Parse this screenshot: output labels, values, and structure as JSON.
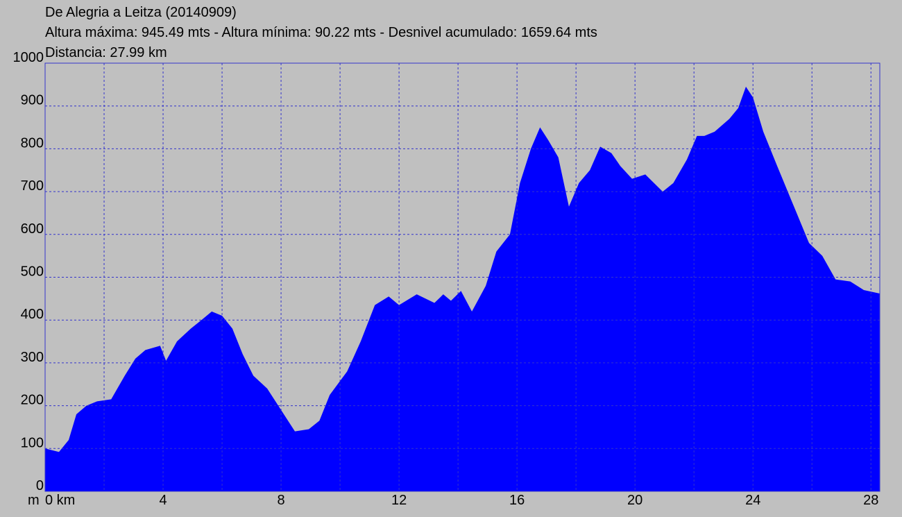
{
  "chart_data": {
    "type": "area",
    "title": "De Alegria a Leitza (20140909)",
    "subtitle": "Altura máxima: 945.49 mts - Altura mínima: 90.22 mts - Desnivel acumulado: 1659.64 mts",
    "annotation": "Distancia: 27.99 km",
    "y_unit": "m",
    "color": "#0000ff",
    "grid_color": "#3333cc",
    "x": [
      0,
      0.47,
      0.8,
      1.06,
      1.4,
      1.76,
      2.24,
      2.7,
      3.06,
      3.4,
      3.9,
      4.1,
      4.47,
      4.94,
      5.3,
      5.65,
      6.0,
      6.35,
      6.7,
      7.06,
      7.53,
      8.0,
      8.47,
      8.94,
      9.3,
      9.65,
      10.24,
      10.7,
      11.18,
      11.65,
      12.0,
      12.6,
      13.2,
      13.5,
      13.76,
      14.1,
      14.47,
      14.94,
      15.3,
      15.76,
      16.1,
      16.47,
      16.78,
      17.06,
      17.4,
      17.76,
      18.1,
      18.47,
      18.82,
      19.2,
      19.5,
      19.9,
      20.35,
      20.94,
      21.3,
      21.76,
      22.1,
      22.35,
      22.7,
      23.2,
      23.5,
      23.76,
      24.0,
      24.35,
      24.82,
      25.3,
      25.9,
      26.35,
      26.8,
      27.3,
      27.76,
      28.3
    ],
    "values": [
      100,
      92,
      120,
      180,
      200,
      210,
      215,
      270,
      310,
      330,
      340,
      305,
      350,
      380,
      400,
      420,
      410,
      380,
      320,
      270,
      240,
      190,
      140,
      145,
      165,
      225,
      280,
      350,
      435,
      455,
      435,
      460,
      440,
      460,
      445,
      468,
      420,
      480,
      560,
      600,
      720,
      800,
      850,
      820,
      780,
      665,
      720,
      750,
      805,
      790,
      760,
      730,
      740,
      700,
      720,
      775,
      830,
      830,
      840,
      870,
      895,
      945,
      920,
      840,
      760,
      680,
      580,
      550,
      495,
      490,
      470,
      462
    ],
    "xlim": [
      0,
      28.3
    ],
    "xticks": [
      {
        "value": 0,
        "label": "0 km"
      },
      4,
      8,
      12,
      16,
      20,
      24,
      28
    ],
    "x_grid": [
      2,
      6,
      10,
      14,
      18,
      22,
      26
    ],
    "ylim": [
      0,
      1000
    ],
    "yticks": [
      0,
      100,
      200,
      300,
      400,
      500,
      600,
      700,
      800,
      900,
      1000
    ],
    "grid": true
  }
}
